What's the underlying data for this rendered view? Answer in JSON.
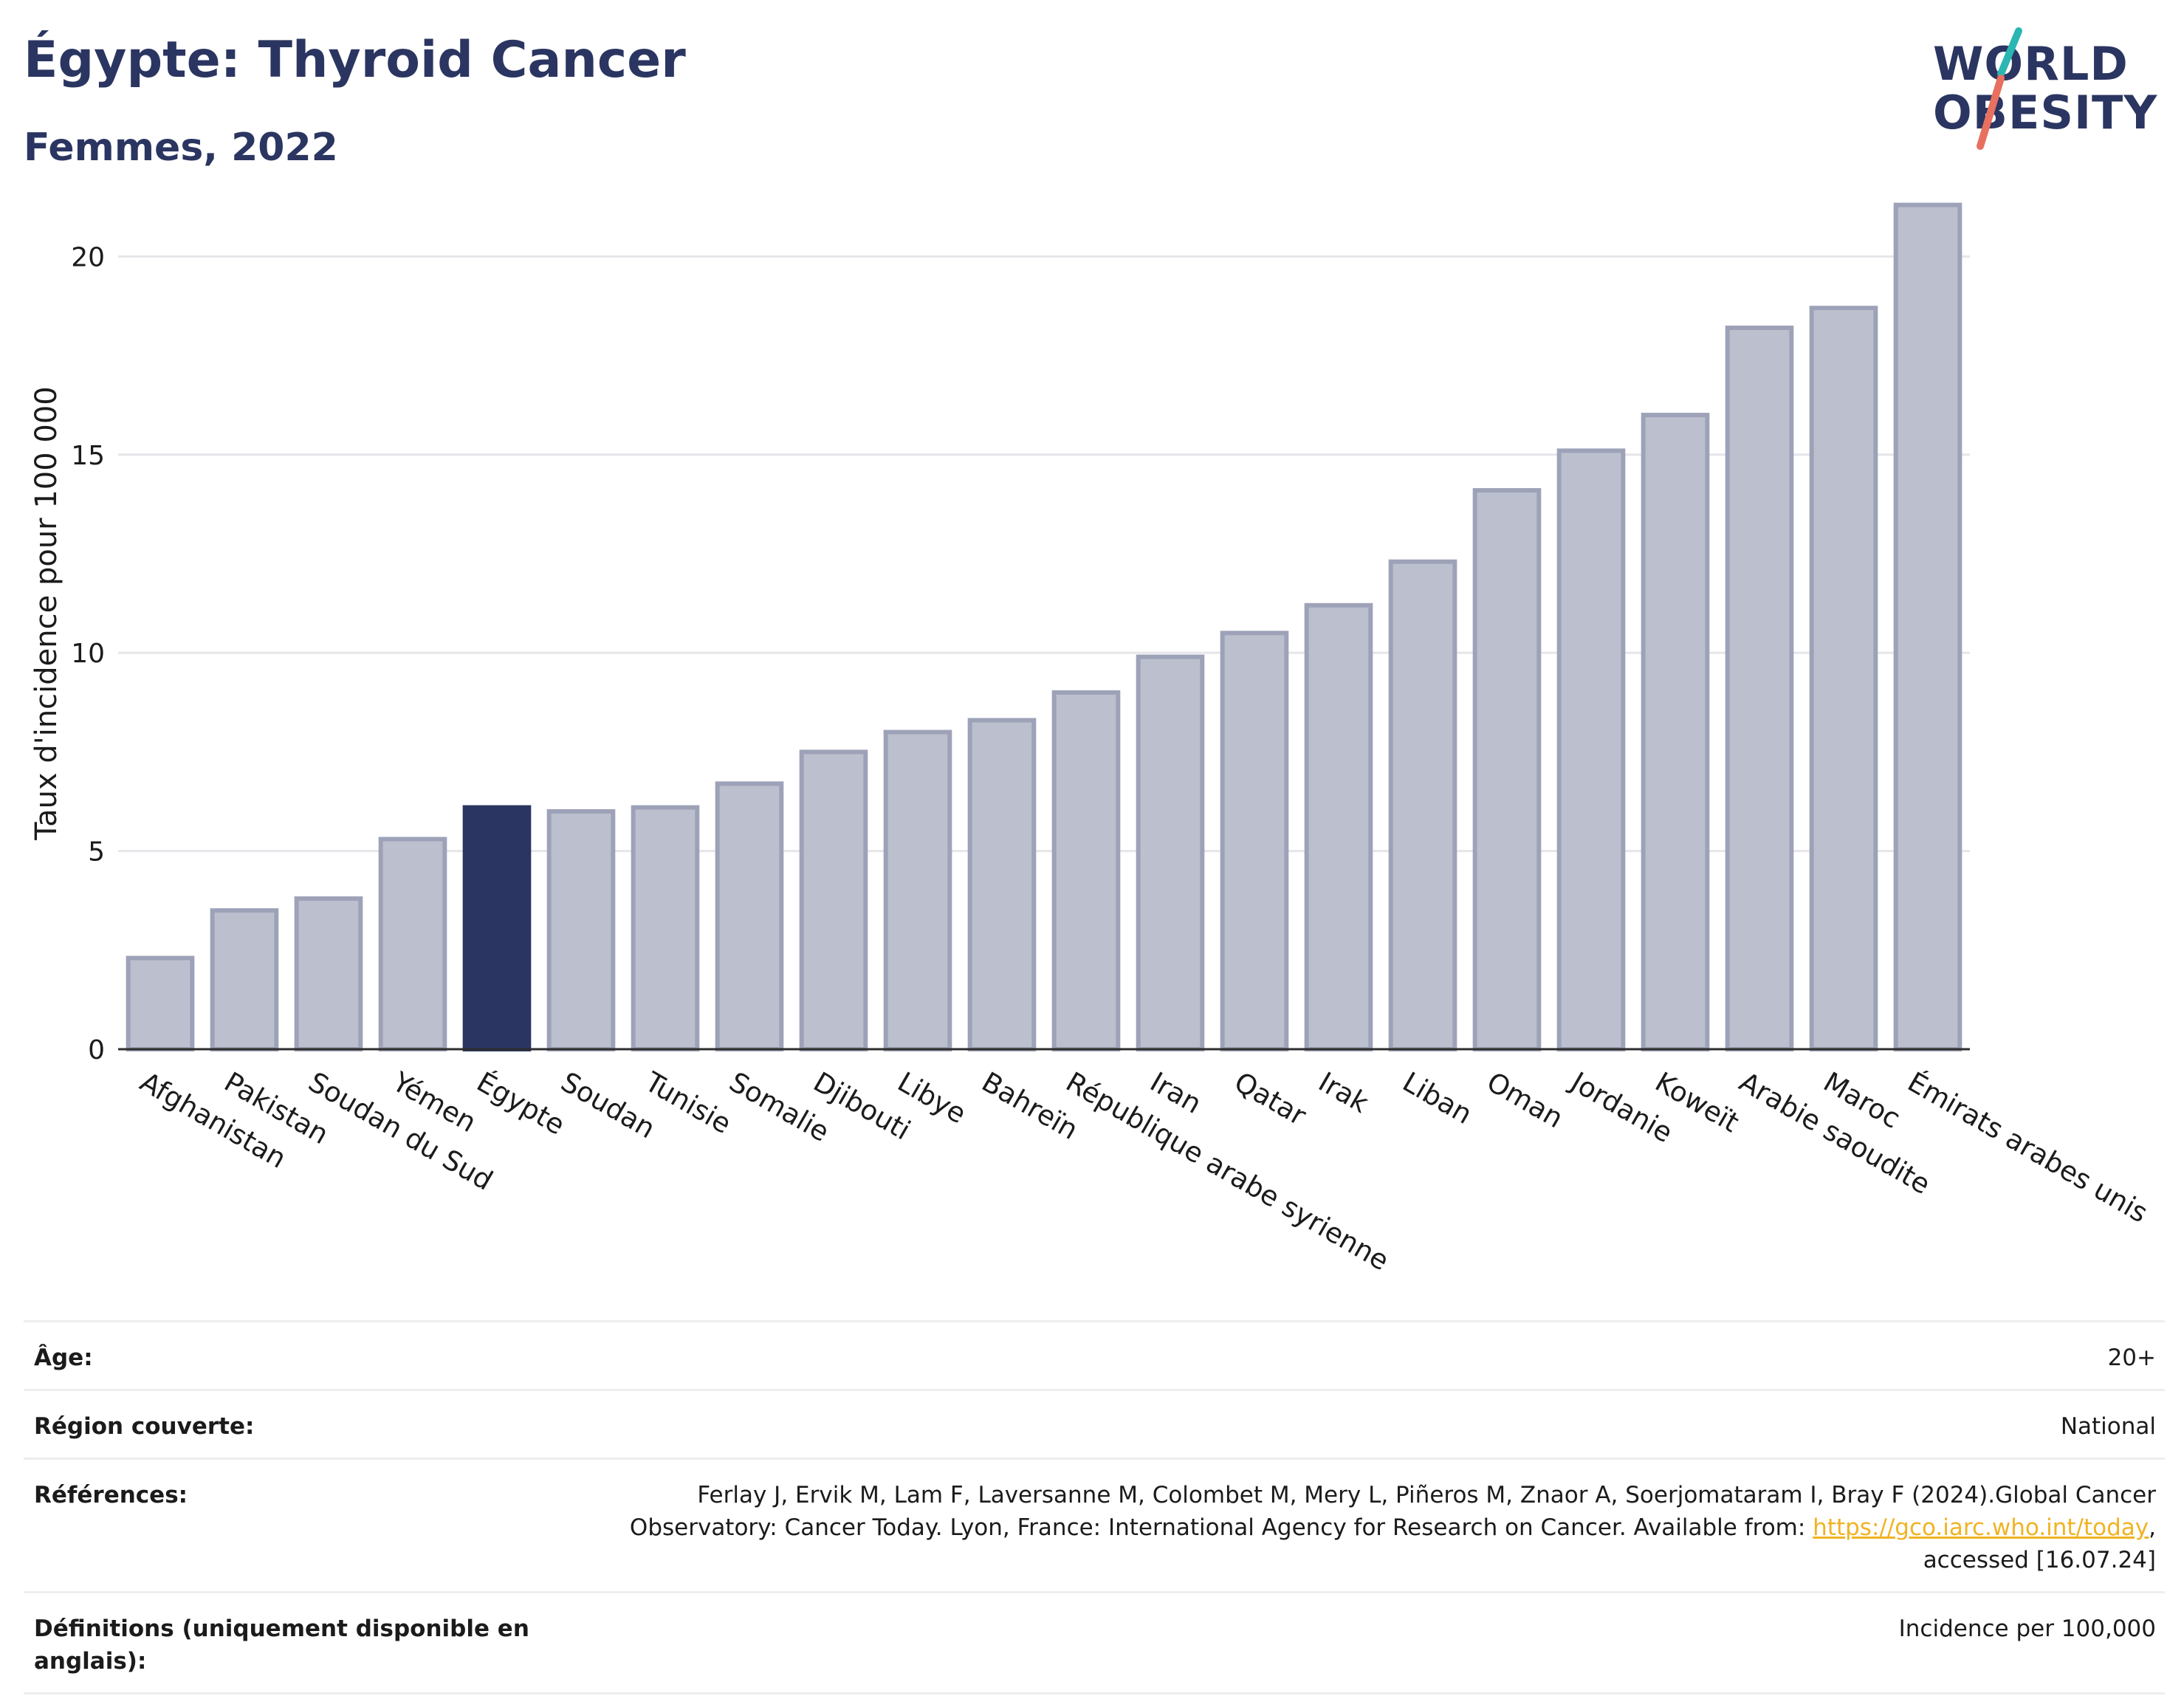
{
  "header": {
    "title": "Égypte: Thyroid Cancer",
    "subtitle": "Femmes, 2022"
  },
  "logo": {
    "line1": "WORLD",
    "line2": "OBESITY",
    "accent_colors": [
      "#2ab6b3",
      "#e8705f"
    ]
  },
  "colors": {
    "highlight_bar": "#2b3561",
    "other_bar_fill": "#bcc0ce",
    "other_bar_stroke": "#9da2b8",
    "gridline": "#e6e6ea",
    "axis_text": "#1b1b1b"
  },
  "chart_data": {
    "type": "bar",
    "ylabel": "Taux d'incidence pour 100 000",
    "ylim": [
      0,
      22
    ],
    "yticks": [
      0,
      5,
      10,
      15,
      20
    ],
    "grid": true,
    "highlight": "Égypte",
    "categories": [
      "Afghanistan",
      "Pakistan",
      "Soudan du Sud",
      "Yémen",
      "Égypte",
      "Soudan",
      "Tunisie",
      "Somalie",
      "Djibouti",
      "Libye",
      "Bahreïn",
      "République arabe syrienne",
      "Iran",
      "Qatar",
      "Irak",
      "Liban",
      "Oman",
      "Jordanie",
      "Koweït",
      "Arabie saoudite",
      "Maroc",
      "Émirats arabes unis"
    ],
    "values": [
      2.3,
      3.5,
      3.8,
      5.3,
      6.1,
      6.0,
      6.1,
      6.7,
      7.5,
      8.0,
      8.3,
      9.0,
      9.9,
      10.5,
      11.2,
      12.3,
      14.1,
      15.1,
      16.0,
      18.2,
      18.7,
      21.3
    ]
  },
  "info": {
    "age_label": "Âge:",
    "age_value": "20+",
    "region_label": "Région couverte:",
    "region_value": "National",
    "references_label": "Références:",
    "references_text_1": "Ferlay J, Ervik M, Lam F, Laversanne M, Colombet M, Mery L, Piñeros M, Znaor A, Soerjomataram I, Bray F (2024).Global Cancer Observatory: Cancer Today. Lyon, France: International Agency for Research on Cancer. Available from: ",
    "references_link": "https://gco.iarc.who.int/today",
    "references_text_2": ", accessed [16.07.24]",
    "definitions_label": "Définitions (uniquement disponible en anglais):",
    "definitions_value": "Incidence per 100,000"
  }
}
